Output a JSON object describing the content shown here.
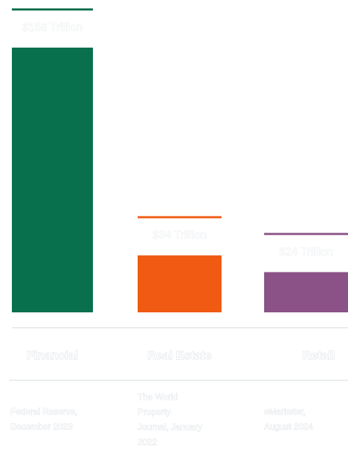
{
  "chart_data": {
    "type": "bar",
    "categories": [
      "Financial",
      "Real Estate",
      "Retail"
    ],
    "values": [
      158,
      34,
      24
    ],
    "value_labels": [
      "$158 Trillion",
      "$34 Trillion",
      "$24 Trillion"
    ],
    "unit": "Trillion",
    "colors": [
      "#08704c",
      "#f05a12",
      "#8a5286"
    ],
    "sources": [
      [
        "Federal Reserve,",
        "December 2023"
      ],
      [
        "The World",
        "Property",
        "Journal, January",
        "2022"
      ],
      [
        "eMarketer,",
        "August 2024"
      ]
    ],
    "grid": false,
    "legend": "none"
  }
}
